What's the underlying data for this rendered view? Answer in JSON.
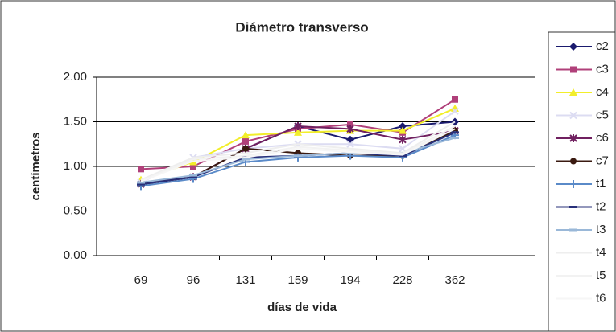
{
  "chart_data": {
    "type": "line",
    "title": "Diámetro transverso",
    "x_label": "días de vida",
    "y_label": "centímetros",
    "categories": [
      "69",
      "96",
      "131",
      "159",
      "194",
      "228",
      "362"
    ],
    "ylim": [
      0,
      2
    ],
    "yticks": [
      {
        "value": 0,
        "label": "0.00"
      },
      {
        "value": 0.5,
        "label": "0.50"
      },
      {
        "value": 1,
        "label": "1.00"
      },
      {
        "value": 1.5,
        "label": "1.50"
      },
      {
        "value": 2,
        "label": "2.00"
      }
    ],
    "grid": true,
    "legend": "right",
    "series": [
      {
        "name": "c2",
        "color": "#1a1a6e",
        "marker": "diamond",
        "values": [
          0.82,
          0.88,
          1.2,
          1.45,
          1.3,
          1.45,
          1.5
        ]
      },
      {
        "name": "c3",
        "color": "#b0407a",
        "marker": "square",
        "values": [
          0.97,
          1.0,
          1.28,
          1.42,
          1.47,
          1.38,
          1.75
        ]
      },
      {
        "name": "c4",
        "color": "#f2ee2a",
        "marker": "triangle",
        "values": [
          0.85,
          1.05,
          1.35,
          1.38,
          1.4,
          1.4,
          1.65
        ]
      },
      {
        "name": "c5",
        "color": "#dcdcf2",
        "marker": "x",
        "values": [
          0.82,
          1.1,
          1.2,
          1.25,
          1.25,
          1.2,
          1.62
        ]
      },
      {
        "name": "c6",
        "color": "#702060",
        "marker": "star",
        "values": [
          0.8,
          0.88,
          1.2,
          1.45,
          1.42,
          1.3,
          1.4
        ]
      },
      {
        "name": "c7",
        "color": "#3a1a10",
        "marker": "circle",
        "values": [
          0.8,
          0.88,
          1.2,
          1.15,
          1.12,
          1.12,
          1.4
        ]
      },
      {
        "name": "t1",
        "color": "#5a8ac8",
        "marker": "plus",
        "values": [
          0.78,
          0.86,
          1.05,
          1.1,
          1.12,
          1.1,
          1.35
        ]
      },
      {
        "name": "t2",
        "color": "#28307a",
        "marker": "dash",
        "values": [
          0.8,
          0.88,
          1.1,
          1.12,
          1.15,
          1.12,
          1.38
        ]
      },
      {
        "name": "t3",
        "color": "#9ab8d8",
        "marker": "dash",
        "values": [
          0.82,
          0.9,
          1.08,
          1.12,
          1.15,
          1.15,
          1.32
        ]
      },
      {
        "name": "t4",
        "color": "#eeeeee",
        "marker": "none",
        "values": [
          0.85,
          1.1,
          1.15,
          1.25,
          1.2,
          1.15,
          1.5
        ]
      },
      {
        "name": "t5",
        "color": "#f2f2f2",
        "marker": "none",
        "values": [
          0.84,
          1.08,
          1.12,
          1.22,
          1.18,
          1.14,
          1.45
        ]
      },
      {
        "name": "t6",
        "color": "#f6f6f6",
        "marker": "none",
        "values": [
          0.83,
          1.06,
          1.1,
          1.2,
          1.16,
          1.13,
          1.42
        ]
      }
    ]
  }
}
